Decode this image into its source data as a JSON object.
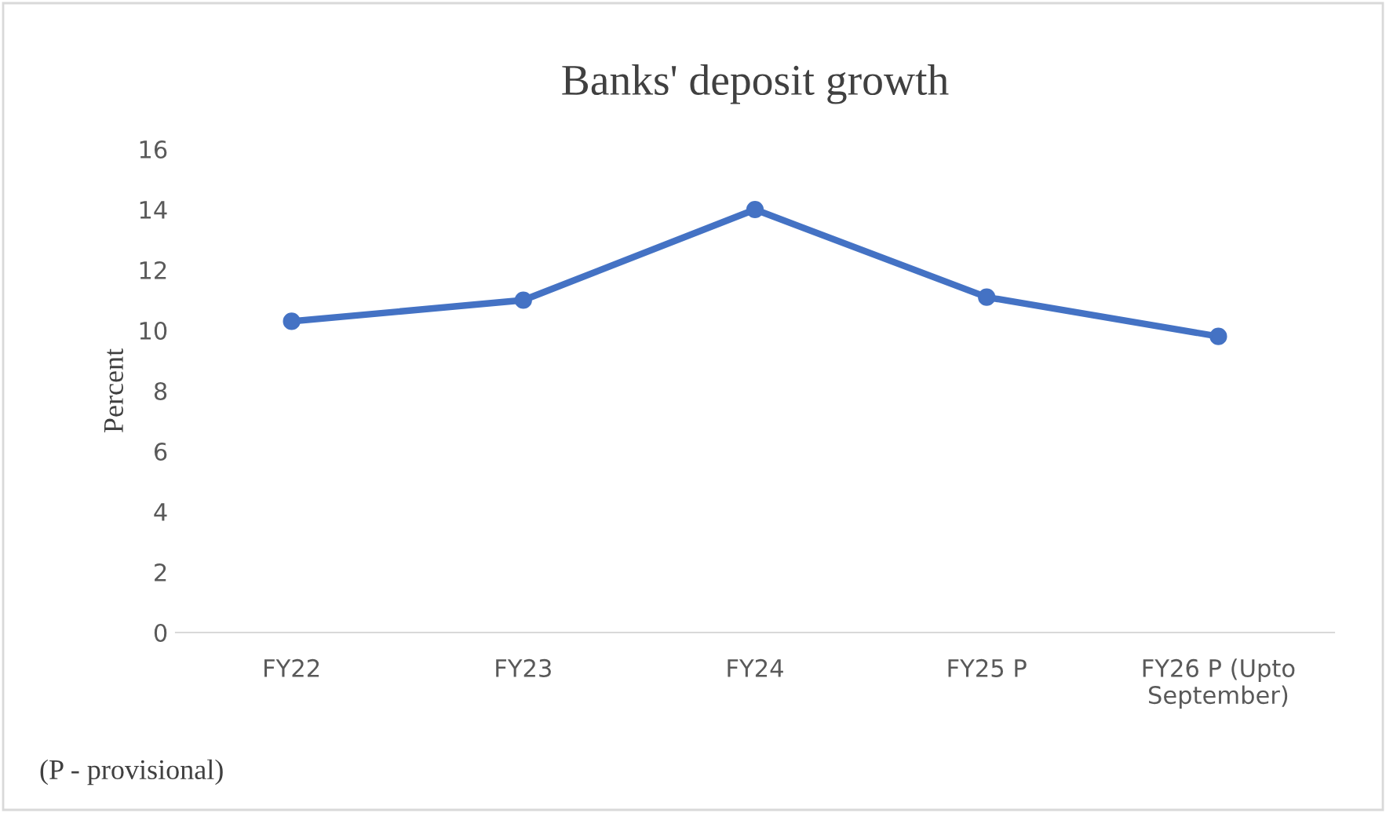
{
  "chart_data": {
    "type": "line",
    "title": "Banks' deposit growth",
    "ylabel": "Percent",
    "categories": [
      "FY22",
      "FY23",
      "FY24",
      "FY25 P",
      "FY26 P (Upto\nSeptember)"
    ],
    "series": [
      {
        "color": "#4472c4",
        "values": [
          10.3,
          11.0,
          14.0,
          11.1,
          9.8
        ]
      }
    ],
    "ylim": [
      0,
      16
    ],
    "yticks": [
      0,
      2,
      4,
      6,
      8,
      10,
      12,
      14,
      16
    ],
    "marker": "circle",
    "line_style": "solid",
    "grid": false,
    "legend": false,
    "annotations": [
      "(P - provisional)"
    ]
  }
}
